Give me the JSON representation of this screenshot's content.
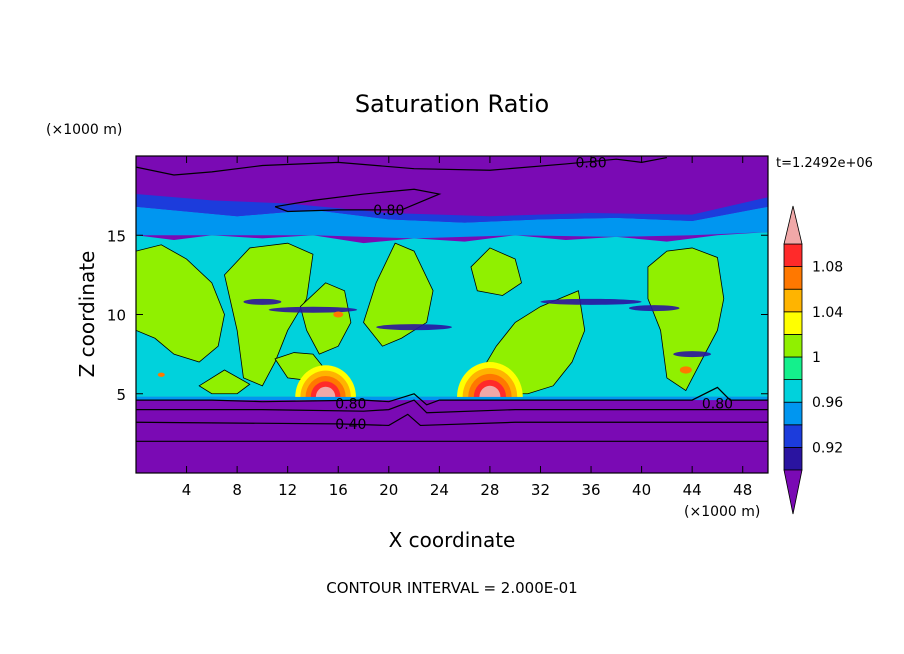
{
  "chart_data": {
    "type": "heatmap",
    "title": "Saturation Ratio",
    "xlabel": "X coordinate",
    "ylabel": "Z coordinate",
    "x_unit": "(×1000 m)",
    "y_unit": "(×1000 m)",
    "time_label": "t=1.2492e+06",
    "footer": "CONTOUR INTERVAL = 2.000E-01",
    "xlim": [
      0,
      50
    ],
    "ylim": [
      0,
      20
    ],
    "x_ticks": [
      4,
      8,
      12,
      16,
      20,
      24,
      28,
      32,
      36,
      40,
      44,
      48
    ],
    "y_ticks": [
      5,
      10,
      15
    ],
    "x_tick_labels": [
      "4",
      "8",
      "12",
      "16",
      "20",
      "24",
      "28",
      "32",
      "36",
      "40",
      "44",
      "48"
    ],
    "y_tick_labels": [
      "5",
      "10",
      "15"
    ],
    "colorbar": {
      "levels": [
        0.9,
        0.92,
        0.94,
        0.96,
        0.98,
        1.0,
        1.02,
        1.04,
        1.06,
        1.08,
        1.1
      ],
      "colors": [
        "#7a0ab4",
        "#2a14a0",
        "#1c3cdc",
        "#0096f0",
        "#00d2dc",
        "#14f08c",
        "#90f000",
        "#ffff00",
        "#ffb400",
        "#ff7800",
        "#ff2a2a",
        "#f0a8a8"
      ],
      "labels": [
        "0.92",
        "0.96",
        "1",
        "1.04",
        "1.08"
      ],
      "label_values": [
        0.92,
        0.96,
        1.0,
        1.04,
        1.08
      ]
    },
    "contour_labels": [
      {
        "text": "0.80",
        "x": 36.0,
        "z": 19.6
      },
      {
        "text": "0.80",
        "x": 20.0,
        "z": 16.6
      },
      {
        "text": "0.80",
        "x": 17.0,
        "z": 4.4
      },
      {
        "text": "0.80",
        "x": 46.0,
        "z": 4.4
      },
      {
        "text": "0.40",
        "x": 17.0,
        "z": 3.1
      }
    ]
  }
}
